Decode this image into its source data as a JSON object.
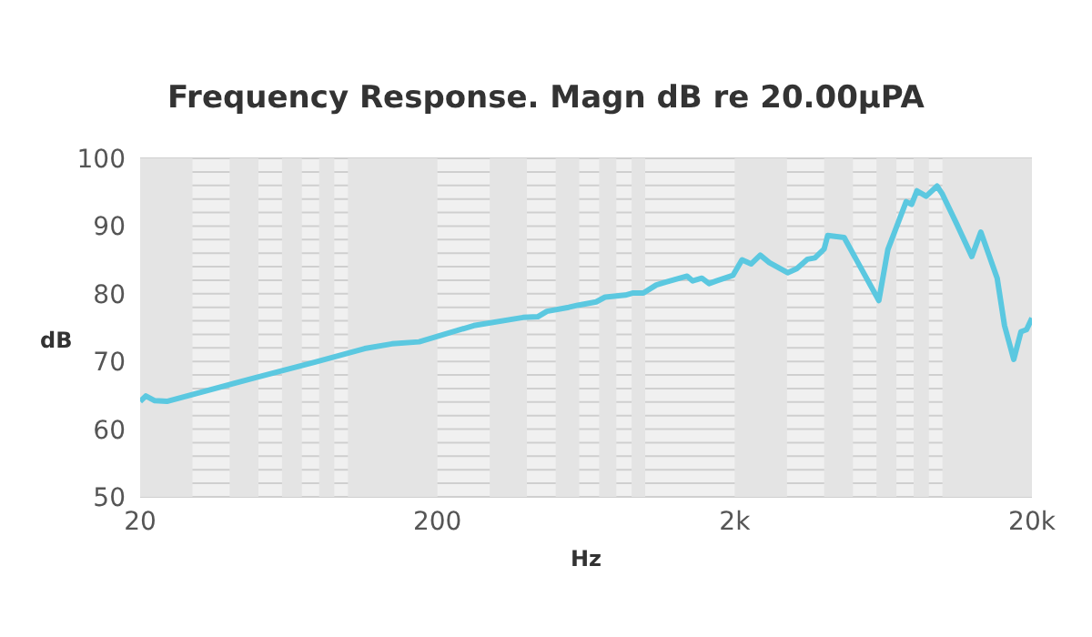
{
  "chart_data": {
    "type": "line",
    "title": "Frequency Response. Magn dB re 20.00μPA",
    "xlabel": "Hz",
    "ylabel": "dB",
    "log": "x",
    "grid": "y",
    "xlim": [
      20,
      20000
    ],
    "xticks": [
      20,
      200,
      {
        "value": 2000,
        "label": "2k"
      },
      {
        "value": 20000,
        "label": "20k"
      }
    ],
    "ylim": [
      50,
      100
    ],
    "yticks": [
      50,
      {
        "value": 52,
        "label": null
      },
      {
        "value": 54,
        "label": null
      },
      {
        "value": 56,
        "label": null
      },
      {
        "value": 58,
        "label": null
      },
      60,
      {
        "value": 62,
        "label": null
      },
      {
        "value": 64,
        "label": null
      },
      {
        "value": 66,
        "label": null
      },
      {
        "value": 68,
        "label": null
      },
      70,
      {
        "value": 72,
        "label": null
      },
      {
        "value": 74,
        "label": null
      },
      {
        "value": 76,
        "label": null
      },
      {
        "value": 78,
        "label": null
      },
      80,
      {
        "value": 82,
        "label": null
      },
      {
        "value": 84,
        "label": null
      },
      {
        "value": 86,
        "label": null
      },
      {
        "value": 88,
        "label": null
      },
      90,
      {
        "value": 92,
        "label": null
      },
      {
        "value": 94,
        "label": null
      },
      {
        "value": 96,
        "label": null
      },
      {
        "value": 98,
        "label": null
      },
      100
    ],
    "bands": [
      {
        "axis": "x",
        "from": 20,
        "to": 30,
        "color": "#e4e4e4"
      },
      {
        "axis": "x",
        "from": 40,
        "to": 50,
        "color": "#e4e4e4"
      },
      {
        "axis": "x",
        "from": 60,
        "to": 70,
        "color": "#e4e4e4"
      },
      {
        "axis": "x",
        "from": 80,
        "to": 90,
        "color": "#e4e4e4"
      },
      {
        "axis": "x",
        "from": 100,
        "to": 200,
        "color": "#e4e4e4"
      },
      {
        "axis": "x",
        "from": 300,
        "to": 400,
        "color": "#e4e4e4"
      },
      {
        "axis": "x",
        "from": 500,
        "to": 600,
        "color": "#e4e4e4"
      },
      {
        "axis": "x",
        "from": 700,
        "to": 800,
        "color": "#e4e4e4"
      },
      {
        "axis": "x",
        "from": 900,
        "to": 1000,
        "color": "#e4e4e4"
      },
      {
        "axis": "x",
        "from": 2000,
        "to": 3000,
        "color": "#e4e4e4"
      },
      {
        "axis": "x",
        "from": 4000,
        "to": 5000,
        "color": "#e4e4e4"
      },
      {
        "axis": "x",
        "from": 6000,
        "to": 7000,
        "color": "#e4e4e4"
      },
      {
        "axis": "x",
        "from": 8000,
        "to": 9000,
        "color": "#e4e4e4"
      },
      {
        "axis": "x",
        "from": 10000,
        "to": 20000,
        "color": "#e4e4e4"
      }
    ],
    "series": [
      {
        "color": "#5bc8e0",
        "x": [
          20,
          20.9,
          22.4,
          24.6,
          48.7,
          77.6,
          113.8,
          140.6,
          173.6,
          200,
          265,
          388,
          435,
          467,
          553,
          593,
          684,
          733,
          857,
          906,
          986,
          1090,
          1169,
          1384,
          1445,
          1551,
          1640,
          1738,
          1972,
          2117,
          2271,
          2438,
          2617,
          3014,
          3235,
          3518,
          3724,
          3998,
          4112,
          4670,
          5152,
          6110,
          6550,
          7548,
          7874,
          8210,
          8812,
          9592,
          10000,
          11196,
          12552,
          13460,
          15280,
          16172,
          17372,
          18372,
          19180,
          20000
        ],
        "values": [
          64.1,
          64.9,
          64.2,
          64.1,
          67.6,
          69.9,
          71.9,
          72.6,
          72.9,
          73.7,
          75.3,
          76.5,
          76.6,
          77.4,
          78.0,
          78.3,
          78.8,
          79.5,
          79.8,
          80.1,
          80.1,
          81.3,
          81.7,
          82.6,
          81.9,
          82.3,
          81.5,
          81.9,
          82.7,
          85.0,
          84.4,
          85.7,
          84.6,
          83.1,
          83.7,
          85.1,
          85.3,
          86.6,
          88.6,
          88.3,
          84.9,
          79.0,
          86.5,
          93.6,
          93.2,
          95.2,
          94.4,
          95.9,
          94.7,
          90.2,
          85.5,
          89.1,
          82.3,
          75.3,
          70.3,
          74.4,
          74.7,
          76.4
        ]
      }
    ]
  }
}
